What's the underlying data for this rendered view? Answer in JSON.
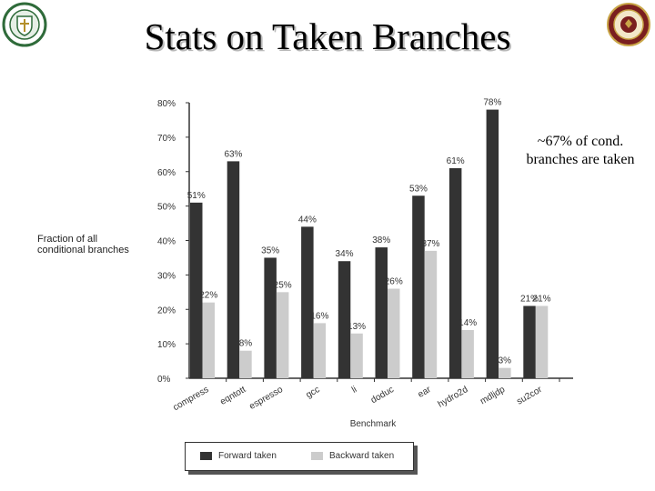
{
  "slide": {
    "title": "Stats on Taken Branches",
    "callout": "~67% of cond. branches are taken",
    "logos": [
      "left-seal",
      "fsu-seal"
    ]
  },
  "chart_data": {
    "type": "bar",
    "title": "",
    "xlabel": "Benchmark",
    "ylabel": "Fraction of all conditional branches",
    "ylim": [
      0,
      80
    ],
    "yticks": [
      "0%",
      "10%",
      "20%",
      "30%",
      "40%",
      "50%",
      "60%",
      "70%",
      "80%"
    ],
    "categories": [
      "compress",
      "eqntott",
      "espresso",
      "gcc",
      "li",
      "doduc",
      "ear",
      "hydro2d",
      "mdljdp",
      "su2cor"
    ],
    "series": [
      {
        "name": "Forward taken",
        "color": "#333333",
        "values": [
          51,
          63,
          35,
          44,
          34,
          38,
          53,
          61,
          78,
          21
        ],
        "labels": [
          "51%",
          "63%",
          "35%",
          "44%",
          "34%",
          "38%",
          "53%",
          "61%",
          "78%",
          "21%"
        ]
      },
      {
        "name": "Backward taken",
        "color": "#cccccc",
        "values": [
          22,
          8,
          25,
          16,
          13,
          26,
          37,
          14,
          3,
          21
        ],
        "labels": [
          "22%",
          "8%",
          "25%",
          "16%",
          "13%",
          "26%",
          "37%",
          "14%",
          "3%",
          "21%"
        ]
      }
    ],
    "grid": false,
    "legend_position": "bottom"
  }
}
